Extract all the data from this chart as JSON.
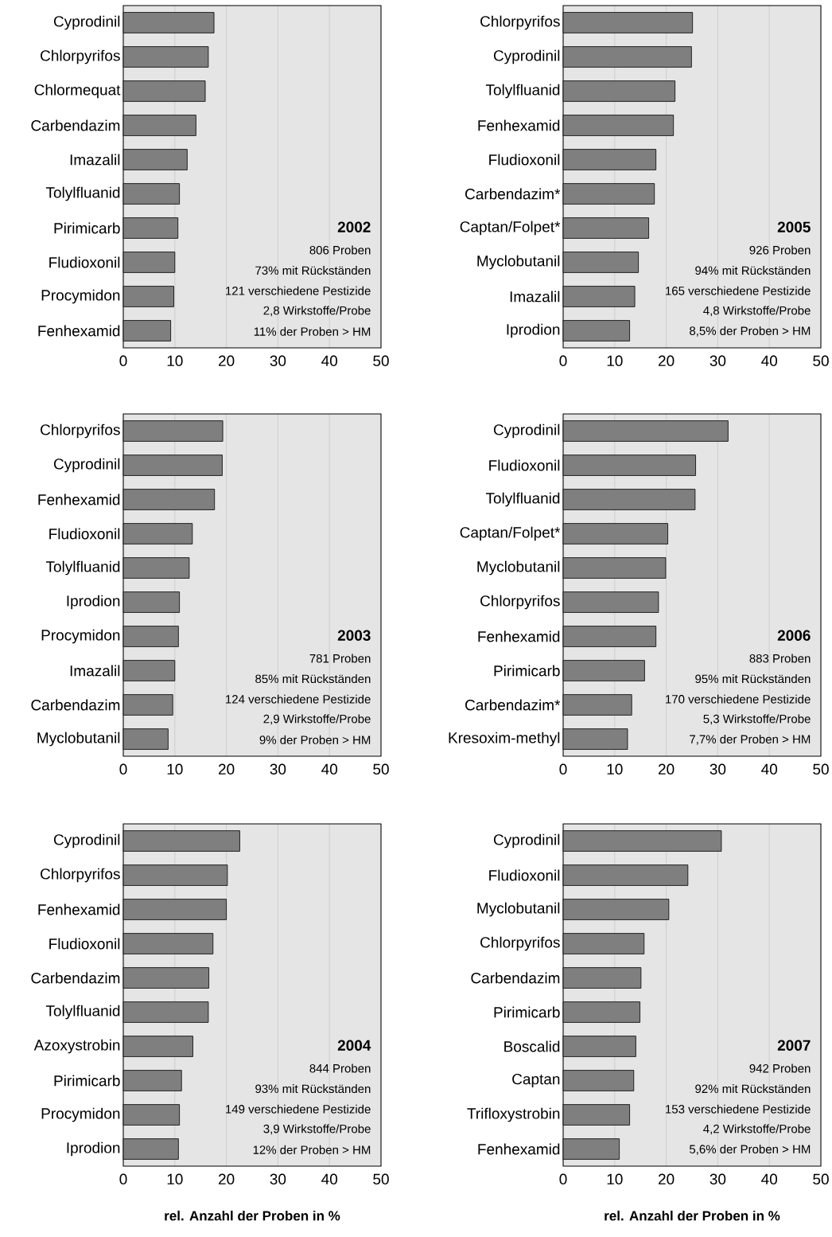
{
  "chart_data": [
    {
      "type": "bar",
      "orientation": "horizontal",
      "title": "2002",
      "annotations": [
        "806 Proben",
        "73% mit Rückständen",
        "121 verschiedene Pestizide",
        "2,8 Wirkstoffe/Probe",
        "11% der Proben > HM"
      ],
      "categories": [
        "Cyprodinil",
        "Chlorpyrifos",
        "Chlormequat",
        "Carbendazim",
        "Imazalil",
        "Tolylfluanid",
        "Pirimicarb",
        "Fludioxonil",
        "Procymidon",
        "Fenhexamid"
      ],
      "values": [
        17.6,
        16.5,
        15.9,
        14.1,
        12.4,
        10.9,
        10.6,
        10.0,
        9.8,
        9.2
      ],
      "color": "#7f7f7f",
      "xlim": [
        0,
        50
      ],
      "xticks": [
        0,
        10,
        20,
        30,
        40,
        50
      ],
      "grid": "x"
    },
    {
      "type": "bar",
      "orientation": "horizontal",
      "title": "2005",
      "annotations": [
        "926 Proben",
        "94% mit Rückständen",
        "165 verschiedene Pestizide",
        "4,8 Wirkstoffe/Probe",
        "8,5% der Proben > HM"
      ],
      "categories": [
        "Chlorpyrifos",
        "Cyprodinil",
        "Tolylfluanid",
        "Fenhexamid",
        "Fludioxonil",
        "Carbendazim*",
        "Captan/Folpet*",
        "Myclobutanil",
        "Imazalil",
        "Iprodion"
      ],
      "values": [
        25.1,
        24.9,
        21.7,
        21.4,
        18.0,
        17.7,
        16.6,
        14.6,
        13.9,
        12.9
      ],
      "color": "#7f7f7f",
      "xlim": [
        0,
        50
      ],
      "xticks": [
        0,
        10,
        20,
        30,
        40,
        50
      ],
      "grid": "x"
    },
    {
      "type": "bar",
      "orientation": "horizontal",
      "title": "2003",
      "annotations": [
        "781 Proben",
        "85% mit Rückständen",
        "124 verschiedene Pestizide",
        "2,9 Wirkstoffe/Probe",
        "9% der Proben > HM"
      ],
      "categories": [
        "Chlorpyrifos",
        "Cyprodinil",
        "Fenhexamid",
        "Fludioxonil",
        "Tolylfluanid",
        "Iprodion",
        "Procymidon",
        "Imazalil",
        "Carbendazim",
        "Myclobutanil"
      ],
      "values": [
        19.3,
        19.2,
        17.7,
        13.4,
        12.8,
        10.9,
        10.7,
        10.0,
        9.6,
        8.7
      ],
      "color": "#7f7f7f",
      "xlim": [
        0,
        50
      ],
      "xticks": [
        0,
        10,
        20,
        30,
        40,
        50
      ],
      "grid": "x"
    },
    {
      "type": "bar",
      "orientation": "horizontal",
      "title": "2006",
      "annotations": [
        "883 Proben",
        "95% mit Rückständen",
        "170 verschiedene Pestizide",
        "5,3 Wirkstoffe/Probe",
        "7,7% der Proben > HM"
      ],
      "categories": [
        "Cyprodinil",
        "Fludioxonil",
        "Tolylfluanid",
        "Captan/Folpet*",
        "Myclobutanil",
        "Chlorpyrifos",
        "Fenhexamid",
        "Pirimicarb",
        "Carbendazim*",
        "Kresoxim-methyl"
      ],
      "values": [
        32.0,
        25.7,
        25.6,
        20.3,
        19.9,
        18.5,
        18.0,
        15.8,
        13.3,
        12.5
      ],
      "color": "#7f7f7f",
      "xlim": [
        0,
        50
      ],
      "xticks": [
        0,
        10,
        20,
        30,
        40,
        50
      ],
      "grid": "x"
    },
    {
      "type": "bar",
      "orientation": "horizontal",
      "title": "2004",
      "annotations": [
        "844 Proben",
        "93% mit Rückständen",
        "149 verschiedene Pestizide",
        "3,9 Wirkstoffe/Probe",
        "12% der Proben > HM"
      ],
      "categories": [
        "Cyprodinil",
        "Chlorpyrifos",
        "Fenhexamid",
        "Fludioxonil",
        "Carbendazim",
        "Tolylfluanid",
        "Azoxystrobin",
        "Pirimicarb",
        "Procymidon",
        "Iprodion"
      ],
      "values": [
        22.6,
        20.2,
        20.0,
        17.4,
        16.6,
        16.5,
        13.5,
        11.3,
        10.9,
        10.7
      ],
      "color": "#7f7f7f",
      "xlim": [
        0,
        50
      ],
      "xticks": [
        0,
        10,
        20,
        30,
        40,
        50
      ],
      "grid": "x",
      "xlabel": "rel. Anzahl der Proben in %"
    },
    {
      "type": "bar",
      "orientation": "horizontal",
      "title": "2007",
      "annotations": [
        "942 Proben",
        "92% mit Rückständen",
        "153 verschiedene Pestizide",
        "4,2 Wirkstoffe/Probe",
        "5,6% der Proben > HM"
      ],
      "categories": [
        "Cyprodinil",
        "Fludioxonil",
        "Myclobutanil",
        "Chlorpyrifos",
        "Carbendazim",
        "Pirimicarb",
        "Boscalid",
        "Captan",
        "Trifloxystrobin",
        "Fenhexamid"
      ],
      "values": [
        30.7,
        24.2,
        20.5,
        15.7,
        15.1,
        14.9,
        14.1,
        13.7,
        12.9,
        10.9
      ],
      "color": "#7f7f7f",
      "xlim": [
        0,
        50
      ],
      "xticks": [
        0,
        10,
        20,
        30,
        40,
        50
      ],
      "grid": "x",
      "xlabel": "rel. Anzahl der Proben in %"
    }
  ]
}
